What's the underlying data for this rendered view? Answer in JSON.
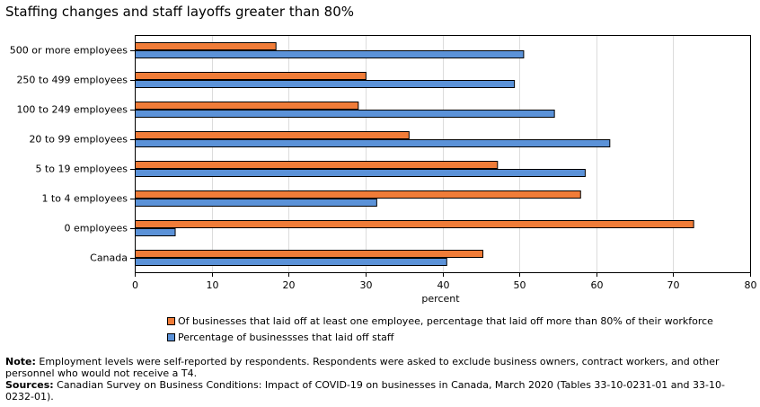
{
  "chart_data": {
    "type": "bar",
    "orientation": "horizontal",
    "title": "Staffing changes and staff layoffs greater than 80%",
    "xlabel": "percent",
    "xlim": [
      0,
      80
    ],
    "x_ticks": [
      "0",
      "10",
      "20",
      "30",
      "40",
      "50",
      "60",
      "70",
      "80"
    ],
    "grid": "vertical",
    "legend_position": "bottom",
    "categories": [
      "500 or more employees",
      "250 to 499 employees",
      "100 to 249 employees",
      "20 to 99 employees",
      "5 to 19 employees",
      "1 to 4 employees",
      "0 employees",
      "Canada"
    ],
    "series": [
      {
        "name": "Of businesses that laid off at least one employee, percentage that laid off more than 80% of their workforce",
        "color": "#f07c38",
        "values": [
          18.3,
          30.0,
          29.0,
          35.6,
          47.1,
          57.9,
          72.6,
          45.2
        ]
      },
      {
        "name": "Percentage of businessses that laid off staff",
        "color": "#5b92d8",
        "values": [
          50.5,
          49.3,
          54.5,
          61.7,
          58.5,
          31.4,
          5.2,
          40.5
        ]
      }
    ]
  },
  "notes": {
    "note_label": "Note:",
    "note_text": " Employment levels were self-reported by respondents. Respondents were asked to exclude business owners, contract workers, and other personnel who would not receive a T4.",
    "sources_label": "Sources:",
    "sources_text": " Canadian Survey on Business Conditions: Impact of COVID-19 on businesses in Canada, March 2020 (Tables 33-10-0231-01 and 33-10-0232-01)."
  }
}
